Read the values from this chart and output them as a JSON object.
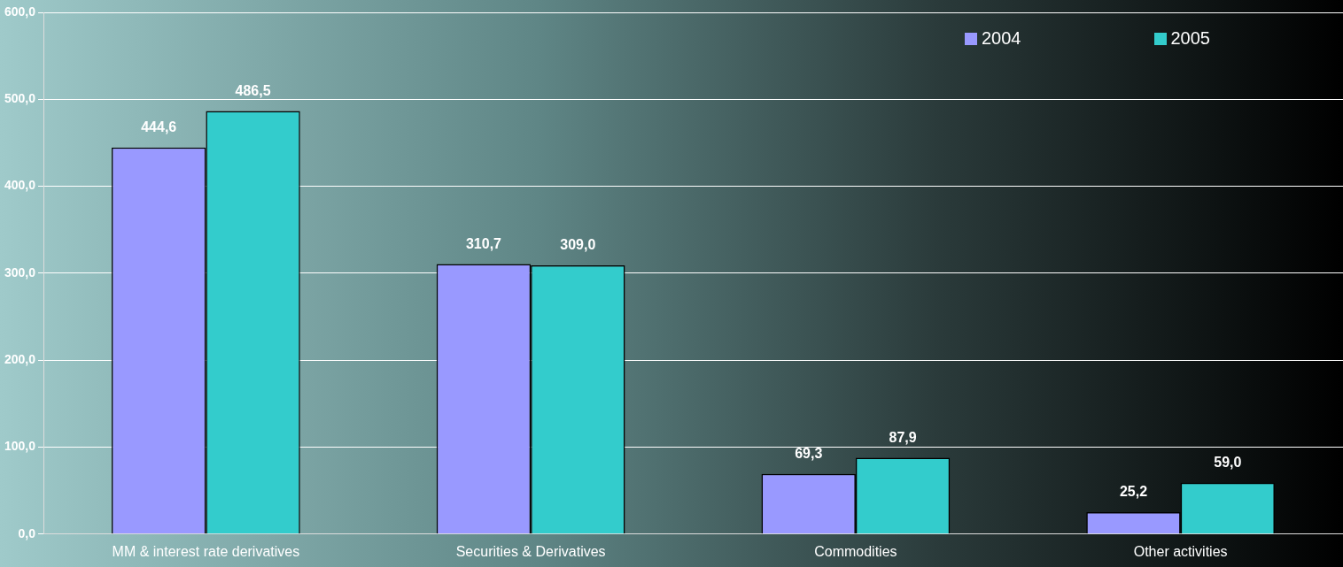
{
  "chart_data": {
    "type": "bar",
    "categories": [
      "MM & interest rate derivatives",
      "Securities & Derivatives",
      "Commodities",
      "Other activities"
    ],
    "series": [
      {
        "name": "2004",
        "color": "#9999ff",
        "values": [
          444.6,
          310.7,
          69.3,
          25.2
        ],
        "value_labels": [
          "444,6",
          "310,7",
          "69,3",
          "25,2"
        ]
      },
      {
        "name": "2005",
        "color": "#33cccc",
        "values": [
          486.5,
          309.0,
          87.9,
          59.0
        ],
        "value_labels": [
          "486,5",
          "309,0",
          "87,9",
          "59,0"
        ]
      }
    ],
    "ylim": [
      0,
      600
    ],
    "yticks": [
      {
        "value": 0,
        "label": "0,0"
      },
      {
        "value": 100,
        "label": "100,0"
      },
      {
        "value": 200,
        "label": "200,0"
      },
      {
        "value": 300,
        "label": "300,0"
      },
      {
        "value": 400,
        "label": "400,0"
      },
      {
        "value": 500,
        "label": "500,0"
      },
      {
        "value": 600,
        "label": "600,0"
      }
    ],
    "grid": "y",
    "legend": "top right"
  }
}
